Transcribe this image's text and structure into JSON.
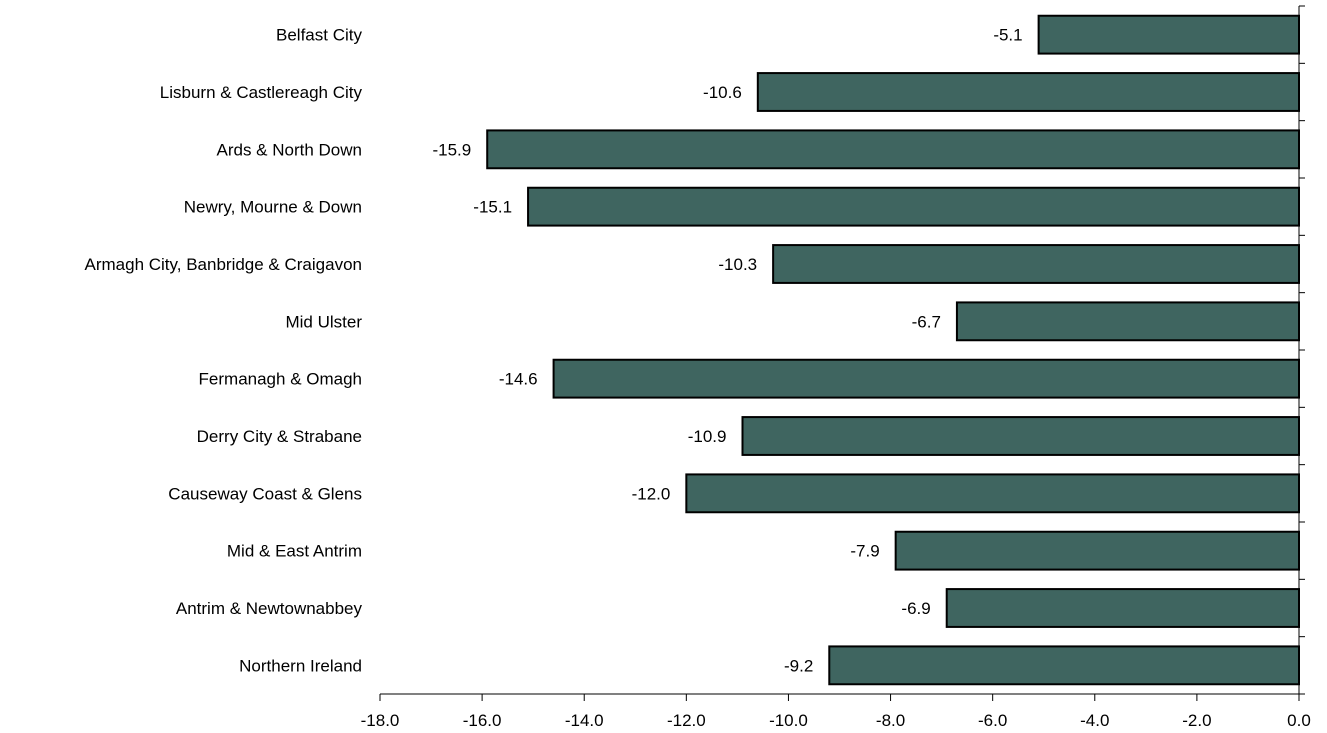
{
  "chart_data": {
    "type": "bar",
    "orientation": "horizontal",
    "categories": [
      "Belfast City",
      "Lisburn & Castlereagh City",
      "Ards & North Down",
      "Newry, Mourne & Down",
      "Armagh City, Banbridge & Craigavon",
      "Mid Ulster",
      "Fermanagh & Omagh",
      "Derry City & Strabane",
      "Causeway Coast & Glens",
      "Mid & East Antrim",
      "Antrim & Newtownabbey",
      "Northern Ireland"
    ],
    "values": [
      -5.1,
      -10.6,
      -15.9,
      -15.1,
      -10.3,
      -6.7,
      -14.6,
      -10.9,
      -12.0,
      -7.9,
      -6.9,
      -9.2
    ],
    "value_labels": [
      "-5.1",
      "-10.6",
      "-15.9",
      "-15.1",
      "-10.3",
      "-6.7",
      "-14.6",
      "-10.9",
      "-12.0",
      "-7.9",
      "-6.9",
      "-9.2"
    ],
    "xlim": [
      -18.0,
      0.0
    ],
    "xticks": [
      -18.0,
      -16.0,
      -14.0,
      -12.0,
      -10.0,
      -8.0,
      -6.0,
      -4.0,
      -2.0,
      0.0
    ],
    "xtick_labels": [
      "-18.0",
      "-16.0",
      "-14.0",
      "-12.0",
      "-10.0",
      "-8.0",
      "-6.0",
      "-4.0",
      "-2.0",
      "0.0"
    ],
    "title": "",
    "xlabel": "",
    "ylabel": "",
    "grid": false,
    "legend": "none",
    "bar_color": "#3f6560"
  }
}
